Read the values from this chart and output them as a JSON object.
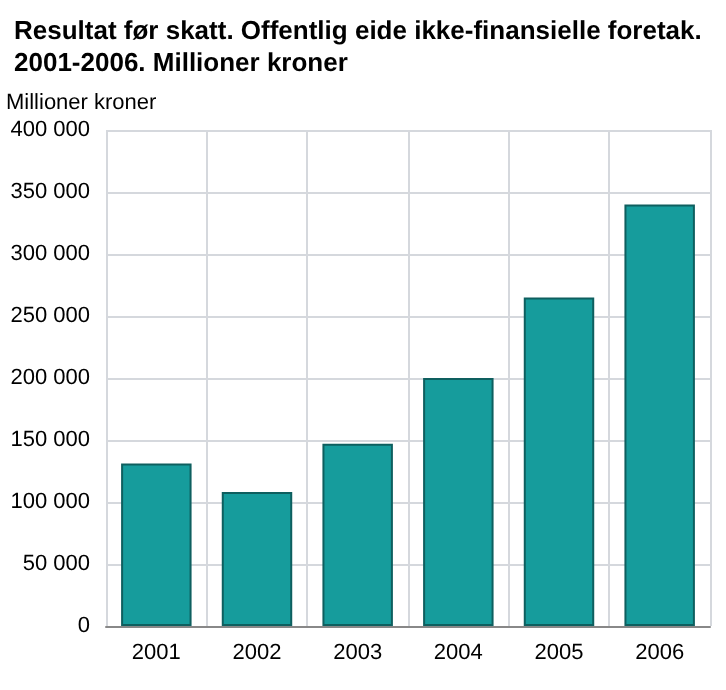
{
  "chart_data": {
    "type": "bar",
    "title": "Resultat før skatt. Offentlig eide ikke-finansielle foretak.\n2001-2006. Millioner kroner",
    "ylabel": "Millioner kroner",
    "categories": [
      "2001",
      "2002",
      "2003",
      "2004",
      "2005",
      "2006"
    ],
    "values": [
      131000,
      108000,
      147000,
      200000,
      265000,
      340000
    ],
    "color": "#169c9c",
    "ylim": [
      0,
      400000
    ],
    "yticks": [
      {
        "value": 0,
        "label": "0"
      },
      {
        "value": 50000,
        "label": "50 000"
      },
      {
        "value": 100000,
        "label": "100 000"
      },
      {
        "value": 150000,
        "label": "150 000"
      },
      {
        "value": 200000,
        "label": "200 000"
      },
      {
        "value": 250000,
        "label": "250 000"
      },
      {
        "value": 300000,
        "label": "300 000"
      },
      {
        "value": 350000,
        "label": "350 000"
      },
      {
        "value": 400000,
        "label": "400 000"
      }
    ],
    "grid": true
  }
}
